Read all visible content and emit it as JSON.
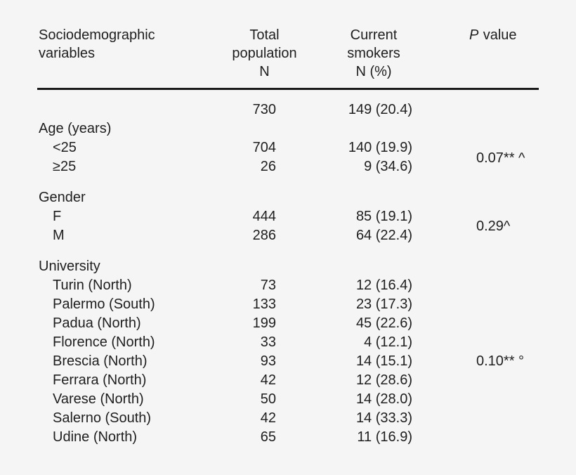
{
  "colors": {
    "background": "#f5f5f5",
    "text": "#1e1e1e",
    "rule": "#1a1a1a"
  },
  "table": {
    "header": {
      "col1": {
        "line1": "Sociodemographic",
        "line2": "variables"
      },
      "col2": {
        "line1": "Total",
        "line2": "population",
        "line3": "N"
      },
      "col3": {
        "line1": "Current",
        "line2": "smokers",
        "line3": "N (%)"
      },
      "col4": {
        "italic": "P",
        "rest": "value"
      }
    },
    "rows": [
      {
        "label": "",
        "total": "730",
        "smokers": "149 (20.4)"
      },
      {
        "label": "Age (years)",
        "total": "",
        "smokers": ""
      },
      {
        "label": "<25",
        "total": "704",
        "smokers": "140 (19.9)"
      },
      {
        "label": "≥25",
        "total": "26",
        "smokers": "9 (34.6)"
      },
      {
        "label": "Gender",
        "total": "",
        "smokers": ""
      },
      {
        "label": "F",
        "total": "444",
        "smokers": "85 (19.1)"
      },
      {
        "label": "M",
        "total": "286",
        "smokers": "64 (22.4)"
      },
      {
        "label": "University",
        "total": "",
        "smokers": ""
      },
      {
        "label": "Turin (North)",
        "total": "73",
        "smokers": "12 (16.4)"
      },
      {
        "label": "Palermo (South)",
        "total": "133",
        "smokers": "23 (17.3)"
      },
      {
        "label": "Padua (North)",
        "total": "199",
        "smokers": "45 (22.6)"
      },
      {
        "label": "Florence (North)",
        "total": "33",
        "smokers": "4 (12.1)"
      },
      {
        "label": "Brescia (North)",
        "total": "93",
        "smokers": "14 (15.1)"
      },
      {
        "label": "Ferrara (North)",
        "total": "42",
        "smokers": "12 (28.6)"
      },
      {
        "label": "Varese (North)",
        "total": "50",
        "smokers": "14 (28.0)"
      },
      {
        "label": "Salerno (South)",
        "total": "42",
        "smokers": "14 (33.3)"
      },
      {
        "label": "Udine (North)",
        "total": "65",
        "smokers": "11 (16.9)"
      }
    ],
    "p_values": [
      "0.07** ^",
      "0.29^",
      "0.10** °"
    ]
  }
}
